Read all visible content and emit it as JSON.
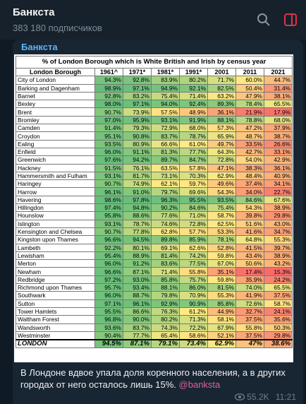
{
  "header": {
    "title": "Банкста",
    "subtitle": "383 180 подписчиков"
  },
  "post": {
    "author": "Банкста",
    "table": {
      "title": "% of London Borough which is White British and Irish by census year",
      "columns": [
        "London Borough",
        "1961^",
        "1971*",
        "1981*",
        "1991*",
        "2001",
        "2011",
        "2021"
      ],
      "rows": [
        [
          "City of London",
          "94.3%",
          "92.8%",
          "83.9%",
          "80.2%",
          "71.7%",
          "60.0%",
          "44.7%"
        ],
        [
          "Barking and Dagenham",
          "98.9%",
          "97.1%",
          "94.9%",
          "92.1%",
          "82.5%",
          "50.4%",
          "31.4%"
        ],
        [
          "Barnet",
          "92.8%",
          "83.2%",
          "75.4%",
          "71.4%",
          "63.2%",
          "47.9%",
          "38.1%"
        ],
        [
          "Bexley",
          "98.0%",
          "97.1%",
          "94.0%",
          "92.4%",
          "89.3%",
          "78.4%",
          "65.5%"
        ],
        [
          "Brent",
          "90.7%",
          "73.9%",
          "57.5%",
          "48.9%",
          "36.1%",
          "21.9%",
          "17.9%"
        ],
        [
          "Bromley",
          "97.0%",
          "95.9%",
          "93.1%",
          "91.9%",
          "88.1%",
          "78.8%",
          "68.0%"
        ],
        [
          "Camden",
          "91.4%",
          "79.3%",
          "72.9%",
          "68.0%",
          "57.3%",
          "47.2%",
          "37.9%"
        ],
        [
          "Croydon",
          "95.1%",
          "90.8%",
          "83.7%",
          "78.7%",
          "65.9%",
          "48.7%",
          "38.7%"
        ],
        [
          "Ealing",
          "93.5%",
          "80.9%",
          "66.6%",
          "61.0%",
          "49.7%",
          "33.5%",
          "26.6%"
        ],
        [
          "Enfield",
          "96.0%",
          "91.1%",
          "81.3%",
          "77.7%",
          "64.3%",
          "42.7%",
          "33.1%"
        ],
        [
          "Greenwich",
          "97.6%",
          "94.2%",
          "89.7%",
          "84.7%",
          "72.8%",
          "54.0%",
          "42.9%"
        ],
        [
          "Hackney",
          "91.5%",
          "76.1%",
          "63.5%",
          "57.8%",
          "47.1%",
          "38.3%",
          "36.1%"
        ],
        [
          "Hammersmith and Fulham",
          "93.1%",
          "81.7%",
          "73.1%",
          "70.3%",
          "62.9%",
          "48.4%",
          "40.9%"
        ],
        [
          "Haringey",
          "90.7%",
          "74.9%",
          "62.1%",
          "59.7%",
          "49.6%",
          "37.4%",
          "34.1%"
        ],
        [
          "Harrow",
          "96.1%",
          "91.0%",
          "79.7%",
          "69.6%",
          "54.3%",
          "34.0%",
          "22.7%"
        ],
        [
          "Havering",
          "98.6%",
          "97.8%",
          "96.3%",
          "95.5%",
          "93.5%",
          "84.6%",
          "67.6%"
        ],
        [
          "Hillingdon",
          "97.4%",
          "94.8%",
          "90.2%",
          "84.6%",
          "75.4%",
          "54.3%",
          "38.9%"
        ],
        [
          "Hounslow",
          "95.8%",
          "88.6%",
          "77.6%",
          "71.0%",
          "58.7%",
          "39.8%",
          "29.8%"
        ],
        [
          "Islington",
          "93.1%",
          "78.7%",
          "74.6%",
          "72.8%",
          "62.5%",
          "51.6%",
          "43.0%"
        ],
        [
          "Kensington and Chelsea",
          "90.7%",
          "77.8%",
          "62.8%",
          "57.7%",
          "53.3%",
          "41.6%",
          "34.7%"
        ],
        [
          "Kingston upon Thames",
          "96.6%",
          "94.5%",
          "89.8%",
          "85.9%",
          "78.1%",
          "64.8%",
          "55.3%"
        ],
        [
          "Lambeth",
          "92.2%",
          "80.1%",
          "69.1%",
          "62.6%",
          "52.8%",
          "41.5%",
          "39.7%"
        ],
        [
          "Lewisham",
          "95.4%",
          "88.9%",
          "81.4%",
          "74.2%",
          "59.8%",
          "43.4%",
          "38.9%"
        ],
        [
          "Merton",
          "96.0%",
          "91.2%",
          "83.6%",
          "77.5%",
          "67.0%",
          "50.6%",
          "43.2%"
        ],
        [
          "Newham",
          "96.6%",
          "87.1%",
          "71.4%",
          "55.8%",
          "35.1%",
          "17.4%",
          "15.3%"
        ],
        [
          "Redbridge",
          "97.2%",
          "93.0%",
          "85.8%",
          "75.7%",
          "59.8%",
          "35.9%",
          "24.2%"
        ],
        [
          "Richmond upon Thames",
          "95.7%",
          "93.4%",
          "88.1%",
          "86.0%",
          "81.5%",
          "74.0%",
          "65.5%"
        ],
        [
          "Southwark",
          "96.0%",
          "88.7%",
          "79.8%",
          "70.9%",
          "55.3%",
          "41.9%",
          "37.5%"
        ],
        [
          "Sutton",
          "97.1%",
          "96.1%",
          "92.9%",
          "90.9%",
          "85.8%",
          "72.6%",
          "58.7%"
        ],
        [
          "Tower Hamlets",
          "95.5%",
          "86.6%",
          "76.3%",
          "61.2%",
          "44.9%",
          "32.7%",
          "24.1%"
        ],
        [
          "Waltham Forest",
          "96.8%",
          "90.0%",
          "80.2%",
          "71.3%",
          "58.1%",
          "37.5%",
          "35.6%"
        ],
        [
          "Wandsworth",
          "93.6%",
          "83.7%",
          "74.3%",
          "72.2%",
          "67.9%",
          "55.8%",
          "50.3%"
        ],
        [
          "Westminster",
          "90.4%",
          "77.7%",
          "65.4%",
          "58.6%",
          "52.1%",
          "37.5%",
          "29.8%"
        ],
        [
          "LONDON",
          "94.5%",
          "87.1%",
          "79.1%",
          "73.4%",
          "62.9%",
          "47%",
          "38.6%"
        ]
      ]
    },
    "caption": "В Лондоне вдвое упала доля коренного населения, а в других городах от него осталось лишь 15%.",
    "link": "@banksta",
    "views": "55.2K",
    "time": "11:21"
  }
}
